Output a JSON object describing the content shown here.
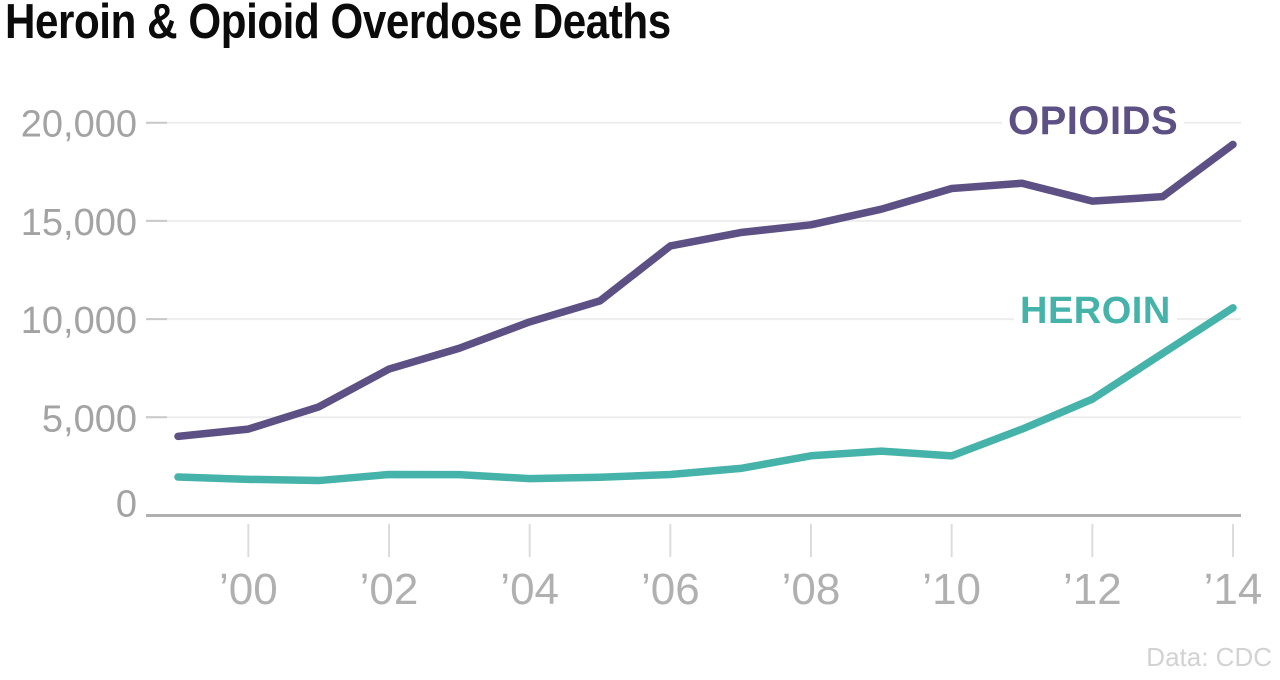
{
  "chart_data": {
    "type": "line",
    "title": "Heroin & Opioid Overdose Deaths",
    "source_label": "Data: CDC",
    "xlabel": "",
    "ylabel": "",
    "xlim": [
      1999,
      2014
    ],
    "ylim": [
      0,
      20000
    ],
    "grid": "horizontal",
    "legend_position": "inline-right-of-lines",
    "x": [
      1999,
      2000,
      2001,
      2002,
      2003,
      2004,
      2005,
      2006,
      2007,
      2008,
      2009,
      2010,
      2011,
      2012,
      2013,
      2014
    ],
    "series": [
      {
        "name": "OPIOIDS",
        "color": "#5c5085",
        "values": [
          4030,
          4400,
          5528,
          7456,
          8517,
          9857,
          10928,
          13723,
          14408,
          14800,
          15597,
          16651,
          16917,
          16007,
          16235,
          18893
        ]
      },
      {
        "name": "HEROIN",
        "color": "#46b3aa",
        "values": [
          1960,
          1842,
          1779,
          2089,
          2080,
          1878,
          1946,
          2088,
          2399,
          3041,
          3278,
          3036,
          4397,
          5925,
          8257,
          10574
        ]
      }
    ],
    "y_ticks": [
      {
        "value": 0,
        "label": "0"
      },
      {
        "value": 5000,
        "label": "5,000"
      },
      {
        "value": 10000,
        "label": "10,000"
      },
      {
        "value": 15000,
        "label": "15,000"
      },
      {
        "value": 20000,
        "label": "20,000"
      }
    ],
    "x_ticks": [
      {
        "value": 2000,
        "label": "’00"
      },
      {
        "value": 2002,
        "label": "’02"
      },
      {
        "value": 2004,
        "label": "’04"
      },
      {
        "value": 2006,
        "label": "’06"
      },
      {
        "value": 2008,
        "label": "’08"
      },
      {
        "value": 2010,
        "label": "’10"
      },
      {
        "value": 2012,
        "label": "’12"
      },
      {
        "value": 2014,
        "label": "’14"
      }
    ]
  }
}
